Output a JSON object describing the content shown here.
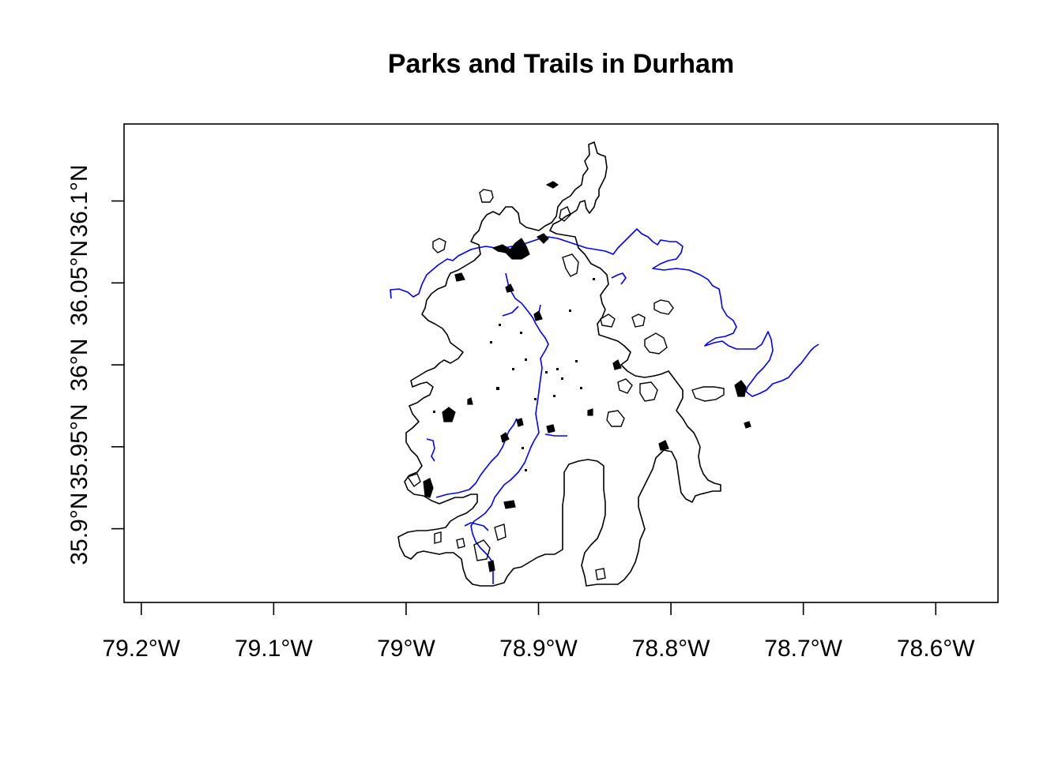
{
  "title": "Parks and Trails in Durham",
  "colors": {
    "background": "#ffffff",
    "boundary": "#000000",
    "trails": "#0000ff",
    "parks": "#00e600"
  },
  "axes": {
    "x_ticks": [
      "79.2°W",
      "79.1°W",
      "79°W",
      "78.9°W",
      "78.8°W",
      "78.7°W",
      "78.6°W"
    ],
    "y_ticks": [
      "35.9°N",
      "35.95°N",
      "36°N",
      "36.05°N",
      "36.1°N"
    ]
  },
  "chart_data": {
    "type": "map",
    "title": "Parks and Trails in Durham",
    "x_ticks_deg": [
      -79.2,
      -79.1,
      -79.0,
      -78.9,
      -78.8,
      -78.7,
      -78.6
    ],
    "y_ticks_deg": [
      35.9,
      35.95,
      36.0,
      36.05,
      36.1
    ],
    "xlim": [
      -79.213,
      -78.553
    ],
    "ylim": [
      35.855,
      36.147
    ],
    "layers": [
      {
        "type": "polygon-outline",
        "color": "#000000"
      },
      {
        "type": "line",
        "color": "#0000ff"
      },
      {
        "type": "polygon-fill",
        "color": "#00e600"
      }
    ]
  }
}
